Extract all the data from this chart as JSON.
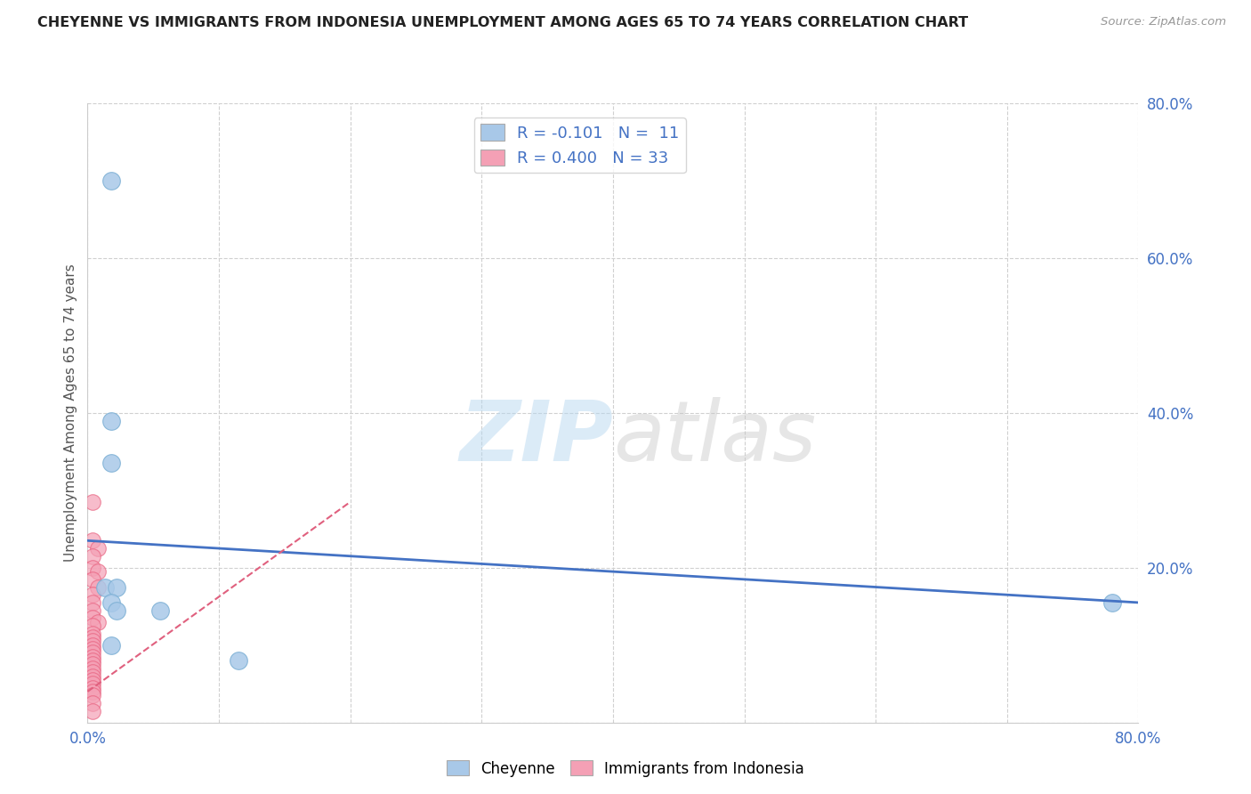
{
  "title": "CHEYENNE VS IMMIGRANTS FROM INDONESIA UNEMPLOYMENT AMONG AGES 65 TO 74 YEARS CORRELATION CHART",
  "source": "Source: ZipAtlas.com",
  "ylabel_label": "Unemployment Among Ages 65 to 74 years",
  "xlim": [
    0.0,
    0.8
  ],
  "ylim": [
    0.0,
    0.8
  ],
  "cheyenne_points": [
    [
      0.018,
      0.7
    ],
    [
      0.018,
      0.39
    ],
    [
      0.018,
      0.335
    ],
    [
      0.013,
      0.175
    ],
    [
      0.022,
      0.175
    ],
    [
      0.018,
      0.155
    ],
    [
      0.022,
      0.145
    ],
    [
      0.055,
      0.145
    ],
    [
      0.018,
      0.1
    ],
    [
      0.115,
      0.08
    ],
    [
      0.78,
      0.155
    ]
  ],
  "indonesia_points": [
    [
      0.004,
      0.285
    ],
    [
      0.004,
      0.235
    ],
    [
      0.008,
      0.225
    ],
    [
      0.004,
      0.215
    ],
    [
      0.004,
      0.2
    ],
    [
      0.008,
      0.195
    ],
    [
      0.004,
      0.185
    ],
    [
      0.008,
      0.175
    ],
    [
      0.004,
      0.165
    ],
    [
      0.004,
      0.155
    ],
    [
      0.004,
      0.145
    ],
    [
      0.004,
      0.135
    ],
    [
      0.008,
      0.13
    ],
    [
      0.004,
      0.125
    ],
    [
      0.004,
      0.115
    ],
    [
      0.004,
      0.11
    ],
    [
      0.004,
      0.105
    ],
    [
      0.004,
      0.1
    ],
    [
      0.004,
      0.095
    ],
    [
      0.004,
      0.09
    ],
    [
      0.004,
      0.085
    ],
    [
      0.004,
      0.08
    ],
    [
      0.004,
      0.075
    ],
    [
      0.004,
      0.07
    ],
    [
      0.004,
      0.065
    ],
    [
      0.004,
      0.06
    ],
    [
      0.004,
      0.055
    ],
    [
      0.004,
      0.05
    ],
    [
      0.004,
      0.045
    ],
    [
      0.004,
      0.04
    ],
    [
      0.004,
      0.035
    ],
    [
      0.004,
      0.025
    ],
    [
      0.004,
      0.015
    ]
  ],
  "cheyenne_color": "#a8c8e8",
  "cheyenne_edge_color": "#7bafd4",
  "indonesia_color": "#f4a0b5",
  "indonesia_edge_color": "#e8607e",
  "cheyenne_trend_x": [
    0.0,
    0.8
  ],
  "cheyenne_trend_y": [
    0.235,
    0.155
  ],
  "indonesia_trend_x": [
    0.0,
    0.2
  ],
  "indonesia_trend_y": [
    0.04,
    0.285
  ],
  "trend_cheyenne_color": "#4472c4",
  "trend_indonesia_color": "#e0607e",
  "watermark_zip": "ZIP",
  "watermark_atlas": "atlas",
  "background_color": "#ffffff",
  "grid_color": "#d0d0d0",
  "legend_r1": "R = -0.101   N =  11",
  "legend_r2": "R = 0.400   N = 33",
  "legend_cheyenne": "Cheyenne",
  "legend_indonesia": "Immigrants from Indonesia"
}
